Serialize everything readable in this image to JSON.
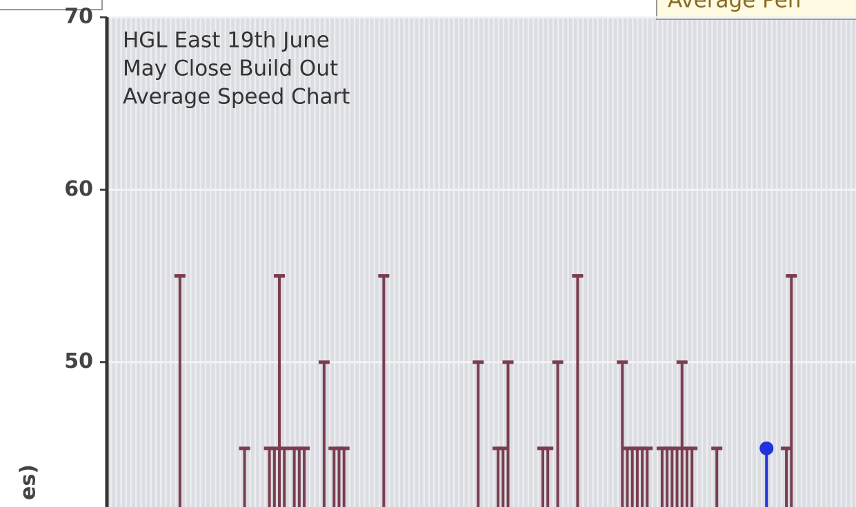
{
  "chart_data": {
    "type": "stem",
    "title_lines": [
      "HGL East 19th June",
      "May Close Build Out",
      "Average Speed Chart"
    ],
    "legend_label": "Average Pen",
    "y_label": "es)",
    "xlim": [
      0,
      150
    ],
    "ylim": [
      41.6,
      70
    ],
    "yticks": [
      50,
      60,
      70
    ],
    "grid": true,
    "series": [
      {
        "color": "#7a3d4f",
        "x": [
          14,
          27,
          32,
          33,
          34,
          35,
          37,
          38,
          39,
          43,
          45,
          46,
          47,
          55,
          74,
          78,
          79,
          80,
          87,
          88,
          90,
          94,
          103,
          104,
          105,
          106,
          107,
          108,
          111,
          112,
          113,
          114,
          115,
          116,
          117,
          122,
          136,
          137
        ],
        "values": [
          55,
          45,
          45,
          45,
          55,
          45,
          45,
          45,
          45,
          50,
          45,
          45,
          45,
          55,
          50,
          45,
          45,
          50,
          45,
          45,
          50,
          55,
          50,
          45,
          45,
          45,
          45,
          45,
          45,
          45,
          45,
          45,
          50,
          45,
          45,
          45,
          45,
          55
        ]
      },
      {
        "color": "#2233dd",
        "marker": "circle",
        "x": [
          132
        ],
        "values": [
          45
        ]
      }
    ]
  }
}
